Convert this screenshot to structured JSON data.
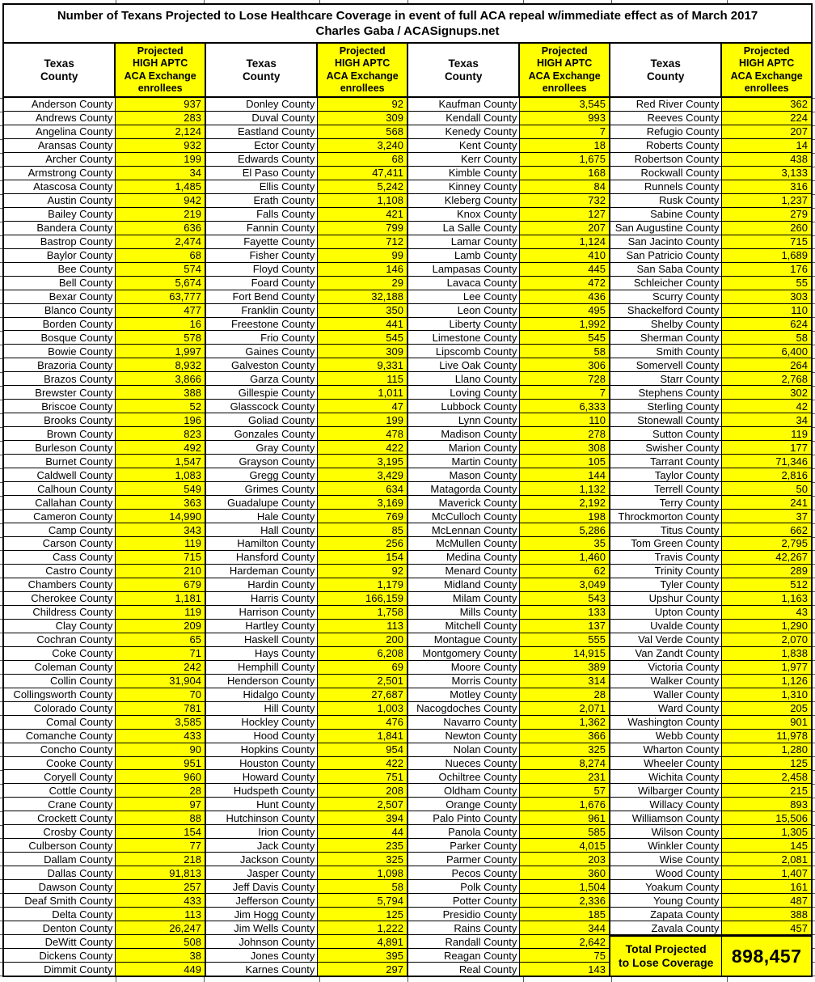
{
  "title": {
    "line1": "Number of Texans Projected to Lose Healthcare Coverage in event of full ACA repeal w/immediate effect as of March 2017",
    "line2": "Charles Gaba / ACASignups.net"
  },
  "header": {
    "county_lines": [
      "Texas",
      "County"
    ],
    "value_lines": [
      "Projected",
      "HIGH APTC",
      "ACA Exchange",
      "enrollees"
    ]
  },
  "colors": {
    "highlight": "#ffff00",
    "border": "#000000",
    "text": "#000000",
    "background": "#ffffff"
  },
  "total": {
    "label_lines": [
      "Total Projected",
      "to Lose Coverage"
    ],
    "value": "898,457"
  },
  "columns": [
    {
      "rows": [
        [
          "Anderson County",
          "937"
        ],
        [
          "Andrews County",
          "283"
        ],
        [
          "Angelina County",
          "2,124"
        ],
        [
          "Aransas County",
          "932"
        ],
        [
          "Archer County",
          "199"
        ],
        [
          "Armstrong County",
          "34"
        ],
        [
          "Atascosa County",
          "1,485"
        ],
        [
          "Austin County",
          "942"
        ],
        [
          "Bailey County",
          "219"
        ],
        [
          "Bandera County",
          "636"
        ],
        [
          "Bastrop County",
          "2,474"
        ],
        [
          "Baylor County",
          "68"
        ],
        [
          "Bee County",
          "574"
        ],
        [
          "Bell County",
          "5,674"
        ],
        [
          "Bexar County",
          "63,777"
        ],
        [
          "Blanco County",
          "477"
        ],
        [
          "Borden County",
          "16"
        ],
        [
          "Bosque County",
          "578"
        ],
        [
          "Bowie County",
          "1,997"
        ],
        [
          "Brazoria County",
          "8,932"
        ],
        [
          "Brazos County",
          "3,866"
        ],
        [
          "Brewster County",
          "388"
        ],
        [
          "Briscoe County",
          "52"
        ],
        [
          "Brooks County",
          "196"
        ],
        [
          "Brown County",
          "823"
        ],
        [
          "Burleson County",
          "492"
        ],
        [
          "Burnet County",
          "1,547"
        ],
        [
          "Caldwell County",
          "1,083"
        ],
        [
          "Calhoun County",
          "549"
        ],
        [
          "Callahan County",
          "363"
        ],
        [
          "Cameron County",
          "14,990"
        ],
        [
          "Camp County",
          "343"
        ],
        [
          "Carson County",
          "119"
        ],
        [
          "Cass County",
          "715"
        ],
        [
          "Castro County",
          "210"
        ],
        [
          "Chambers County",
          "679"
        ],
        [
          "Cherokee County",
          "1,181"
        ],
        [
          "Childress County",
          "119"
        ],
        [
          "Clay County",
          "209"
        ],
        [
          "Cochran County",
          "65"
        ],
        [
          "Coke County",
          "71"
        ],
        [
          "Coleman County",
          "242"
        ],
        [
          "Collin County",
          "31,904"
        ],
        [
          "Collingsworth County",
          "70"
        ],
        [
          "Colorado County",
          "781"
        ],
        [
          "Comal County",
          "3,585"
        ],
        [
          "Comanche County",
          "433"
        ],
        [
          "Concho County",
          "90"
        ],
        [
          "Cooke County",
          "951"
        ],
        [
          "Coryell County",
          "960"
        ],
        [
          "Cottle County",
          "28"
        ],
        [
          "Crane County",
          "97"
        ],
        [
          "Crockett County",
          "88"
        ],
        [
          "Crosby County",
          "154"
        ],
        [
          "Culberson County",
          "77"
        ],
        [
          "Dallam County",
          "218"
        ],
        [
          "Dallas County",
          "91,813"
        ],
        [
          "Dawson County",
          "257"
        ],
        [
          "Deaf Smith County",
          "433"
        ],
        [
          "Delta County",
          "113"
        ],
        [
          "Denton County",
          "26,247"
        ],
        [
          "DeWitt County",
          "508"
        ],
        [
          "Dickens County",
          "38"
        ],
        [
          "Dimmit County",
          "449"
        ]
      ]
    },
    {
      "rows": [
        [
          "Donley County",
          "92"
        ],
        [
          "Duval County",
          "309"
        ],
        [
          "Eastland County",
          "568"
        ],
        [
          "Ector County",
          "3,240"
        ],
        [
          "Edwards County",
          "68"
        ],
        [
          "El Paso County",
          "47,411"
        ],
        [
          "Ellis County",
          "5,242"
        ],
        [
          "Erath County",
          "1,108"
        ],
        [
          "Falls County",
          "421"
        ],
        [
          "Fannin County",
          "799"
        ],
        [
          "Fayette County",
          "712"
        ],
        [
          "Fisher County",
          "99"
        ],
        [
          "Floyd County",
          "146"
        ],
        [
          "Foard County",
          "29"
        ],
        [
          "Fort Bend County",
          "32,188"
        ],
        [
          "Franklin County",
          "350"
        ],
        [
          "Freestone County",
          "441"
        ],
        [
          "Frio County",
          "545"
        ],
        [
          "Gaines County",
          "309"
        ],
        [
          "Galveston County",
          "9,331"
        ],
        [
          "Garza County",
          "115"
        ],
        [
          "Gillespie County",
          "1,011"
        ],
        [
          "Glasscock County",
          "47"
        ],
        [
          "Goliad County",
          "199"
        ],
        [
          "Gonzales County",
          "478"
        ],
        [
          "Gray County",
          "422"
        ],
        [
          "Grayson County",
          "3,195"
        ],
        [
          "Gregg County",
          "3,429"
        ],
        [
          "Grimes County",
          "634"
        ],
        [
          "Guadalupe County",
          "3,169"
        ],
        [
          "Hale County",
          "769"
        ],
        [
          "Hall County",
          "85"
        ],
        [
          "Hamilton County",
          "256"
        ],
        [
          "Hansford County",
          "154"
        ],
        [
          "Hardeman County",
          "92"
        ],
        [
          "Hardin County",
          "1,179"
        ],
        [
          "Harris County",
          "166,159"
        ],
        [
          "Harrison County",
          "1,758"
        ],
        [
          "Hartley County",
          "113"
        ],
        [
          "Haskell County",
          "200"
        ],
        [
          "Hays County",
          "6,208"
        ],
        [
          "Hemphill County",
          "69"
        ],
        [
          "Henderson County",
          "2,501"
        ],
        [
          "Hidalgo County",
          "27,687"
        ],
        [
          "Hill County",
          "1,003"
        ],
        [
          "Hockley County",
          "476"
        ],
        [
          "Hood County",
          "1,841"
        ],
        [
          "Hopkins County",
          "954"
        ],
        [
          "Houston County",
          "422"
        ],
        [
          "Howard County",
          "751"
        ],
        [
          "Hudspeth County",
          "208"
        ],
        [
          "Hunt County",
          "2,507"
        ],
        [
          "Hutchinson County",
          "394"
        ],
        [
          "Irion County",
          "44"
        ],
        [
          "Jack County",
          "235"
        ],
        [
          "Jackson County",
          "325"
        ],
        [
          "Jasper County",
          "1,098"
        ],
        [
          "Jeff Davis County",
          "58"
        ],
        [
          "Jefferson County",
          "5,794"
        ],
        [
          "Jim Hogg County",
          "125"
        ],
        [
          "Jim Wells County",
          "1,222"
        ],
        [
          "Johnson County",
          "4,891"
        ],
        [
          "Jones County",
          "395"
        ],
        [
          "Karnes County",
          "297"
        ]
      ]
    },
    {
      "rows": [
        [
          "Kaufman County",
          "3,545"
        ],
        [
          "Kendall County",
          "993"
        ],
        [
          "Kenedy County",
          "7"
        ],
        [
          "Kent County",
          "18"
        ],
        [
          "Kerr County",
          "1,675"
        ],
        [
          "Kimble County",
          "168"
        ],
        [
          "Kinney County",
          "84"
        ],
        [
          "Kleberg County",
          "732"
        ],
        [
          "Knox County",
          "127"
        ],
        [
          "La Salle County",
          "207"
        ],
        [
          "Lamar County",
          "1,124"
        ],
        [
          "Lamb County",
          "410"
        ],
        [
          "Lampasas County",
          "445"
        ],
        [
          "Lavaca County",
          "472"
        ],
        [
          "Lee County",
          "436"
        ],
        [
          "Leon County",
          "495"
        ],
        [
          "Liberty County",
          "1,992"
        ],
        [
          "Limestone County",
          "545"
        ],
        [
          "Lipscomb County",
          "58"
        ],
        [
          "Live Oak County",
          "306"
        ],
        [
          "Llano County",
          "728"
        ],
        [
          "Loving County",
          "7"
        ],
        [
          "Lubbock County",
          "6,333"
        ],
        [
          "Lynn County",
          "110"
        ],
        [
          "Madison County",
          "278"
        ],
        [
          "Marion County",
          "308"
        ],
        [
          "Martin County",
          "105"
        ],
        [
          "Mason County",
          "144"
        ],
        [
          "Matagorda County",
          "1,132"
        ],
        [
          "Maverick County",
          "2,192"
        ],
        [
          "McCulloch County",
          "198"
        ],
        [
          "McLennan County",
          "5,286"
        ],
        [
          "McMullen County",
          "35"
        ],
        [
          "Medina County",
          "1,460"
        ],
        [
          "Menard County",
          "62"
        ],
        [
          "Midland County",
          "3,049"
        ],
        [
          "Milam County",
          "543"
        ],
        [
          "Mills County",
          "133"
        ],
        [
          "Mitchell County",
          "137"
        ],
        [
          "Montague County",
          "555"
        ],
        [
          "Montgomery County",
          "14,915"
        ],
        [
          "Moore County",
          "389"
        ],
        [
          "Morris County",
          "314"
        ],
        [
          "Motley County",
          "28"
        ],
        [
          "Nacogdoches County",
          "2,071"
        ],
        [
          "Navarro County",
          "1,362"
        ],
        [
          "Newton County",
          "366"
        ],
        [
          "Nolan County",
          "325"
        ],
        [
          "Nueces County",
          "8,274"
        ],
        [
          "Ochiltree County",
          "231"
        ],
        [
          "Oldham County",
          "57"
        ],
        [
          "Orange County",
          "1,676"
        ],
        [
          "Palo Pinto County",
          "961"
        ],
        [
          "Panola County",
          "585"
        ],
        [
          "Parker County",
          "4,015"
        ],
        [
          "Parmer County",
          "203"
        ],
        [
          "Pecos County",
          "360"
        ],
        [
          "Polk County",
          "1,504"
        ],
        [
          "Potter County",
          "2,336"
        ],
        [
          "Presidio County",
          "185"
        ],
        [
          "Rains County",
          "344"
        ],
        [
          "Randall County",
          "2,642"
        ],
        [
          "Reagan County",
          "75"
        ],
        [
          "Real County",
          "143"
        ]
      ]
    },
    {
      "rows": [
        [
          "Red River County",
          "362"
        ],
        [
          "Reeves County",
          "224"
        ],
        [
          "Refugio County",
          "207"
        ],
        [
          "Roberts County",
          "14"
        ],
        [
          "Robertson County",
          "438"
        ],
        [
          "Rockwall County",
          "3,133"
        ],
        [
          "Runnels County",
          "316"
        ],
        [
          "Rusk County",
          "1,237"
        ],
        [
          "Sabine County",
          "279"
        ],
        [
          "San Augustine County",
          "260"
        ],
        [
          "San Jacinto County",
          "715"
        ],
        [
          "San Patricio County",
          "1,689"
        ],
        [
          "San Saba County",
          "176"
        ],
        [
          "Schleicher County",
          "55"
        ],
        [
          "Scurry County",
          "303"
        ],
        [
          "Shackelford County",
          "110"
        ],
        [
          "Shelby County",
          "624"
        ],
        [
          "Sherman County",
          "58"
        ],
        [
          "Smith County",
          "6,400"
        ],
        [
          "Somervell County",
          "264"
        ],
        [
          "Starr County",
          "2,768"
        ],
        [
          "Stephens County",
          "302"
        ],
        [
          "Sterling County",
          "42"
        ],
        [
          "Stonewall County",
          "34"
        ],
        [
          "Sutton County",
          "119"
        ],
        [
          "Swisher County",
          "177"
        ],
        [
          "Tarrant County",
          "71,346"
        ],
        [
          "Taylor County",
          "2,816"
        ],
        [
          "Terrell County",
          "50"
        ],
        [
          "Terry County",
          "241"
        ],
        [
          "Throckmorton County",
          "37"
        ],
        [
          "Titus County",
          "662"
        ],
        [
          "Tom Green County",
          "2,795"
        ],
        [
          "Travis County",
          "42,267"
        ],
        [
          "Trinity County",
          "289"
        ],
        [
          "Tyler County",
          "512"
        ],
        [
          "Upshur County",
          "1,163"
        ],
        [
          "Upton County",
          "43"
        ],
        [
          "Uvalde County",
          "1,290"
        ],
        [
          "Val Verde County",
          "2,070"
        ],
        [
          "Van Zandt County",
          "1,838"
        ],
        [
          "Victoria County",
          "1,977"
        ],
        [
          "Walker County",
          "1,126"
        ],
        [
          "Waller County",
          "1,310"
        ],
        [
          "Ward County",
          "205"
        ],
        [
          "Washington County",
          "901"
        ],
        [
          "Webb County",
          "11,978"
        ],
        [
          "Wharton County",
          "1,280"
        ],
        [
          "Wheeler County",
          "125"
        ],
        [
          "Wichita County",
          "2,458"
        ],
        [
          "Wilbarger County",
          "215"
        ],
        [
          "Willacy County",
          "893"
        ],
        [
          "Williamson County",
          "15,506"
        ],
        [
          "Wilson County",
          "1,305"
        ],
        [
          "Winkler County",
          "145"
        ],
        [
          "Wise County",
          "2,081"
        ],
        [
          "Wood County",
          "1,407"
        ],
        [
          "Yoakum County",
          "161"
        ],
        [
          "Young County",
          "487"
        ],
        [
          "Zapata County",
          "388"
        ],
        [
          "Zavala County",
          "457"
        ]
      ]
    }
  ]
}
